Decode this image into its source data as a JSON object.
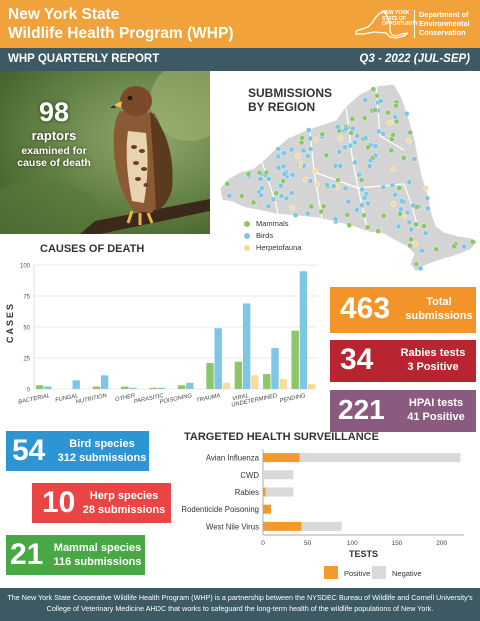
{
  "header": {
    "title_line1": "New York State",
    "title_line2": "Wildlife Health Program (WHP)",
    "logo_state_text": "NEW YORK STATE OF OPPORTUNITY",
    "logo_dec_line1": "Department of",
    "logo_dec_line2": "Environmental",
    "logo_dec_line3": "Conservation"
  },
  "subheader": {
    "left": "WHP QUARTERLY REPORT",
    "right": "Q3 - 2022 (JUL-SEP)"
  },
  "photo_stat": {
    "number": "98",
    "label": "raptors",
    "sublabel": "examined for cause of death"
  },
  "map": {
    "title_line1": "SUBMISSIONS",
    "title_line2": "BY REGION",
    "legend": [
      {
        "label": "Mammals",
        "color": "#8cc56a"
      },
      {
        "label": "Birds",
        "color": "#7ec6e4"
      },
      {
        "label": "Herpetofauna",
        "color": "#f5dc9a"
      }
    ]
  },
  "causes_title": "CAUSES OF DEATH",
  "chart_data": [
    {
      "type": "bar",
      "title": "CAUSES OF DEATH",
      "ylabel": "CASES",
      "xlabel": "",
      "ylim": [
        0,
        100
      ],
      "yticks": [
        0,
        25,
        50,
        75,
        100
      ],
      "grid": true,
      "categories": [
        "BACTERIAL",
        "FUNGAL",
        "NUTRITION",
        "OTHER",
        "PARASITIC",
        "POISONING",
        "TRAUMA",
        "VIRAL",
        "UNDETERMINED",
        "PENDING"
      ],
      "series": [
        {
          "name": "Mammals",
          "color": "#8cc56a",
          "values": [
            3,
            0,
            2,
            2,
            1,
            3,
            21,
            22,
            12,
            47
          ]
        },
        {
          "name": "Birds",
          "color": "#7ec6e4",
          "values": [
            2,
            7,
            11,
            1,
            1,
            5,
            49,
            69,
            33,
            95
          ]
        },
        {
          "name": "Herpetofauna",
          "color": "#f5dc9a",
          "values": [
            0,
            0,
            0,
            0,
            0,
            0,
            5,
            11,
            8,
            4
          ]
        }
      ]
    },
    {
      "type": "bar",
      "orientation": "horizontal",
      "stacked": true,
      "title": "TARGETED HEALTH SURVEILLANCE",
      "xlabel": "TESTS",
      "xlim": [
        0,
        225
      ],
      "xticks": [
        0,
        50,
        100,
        150,
        200
      ],
      "grid": false,
      "categories": [
        "Avian Influenza",
        "CWD",
        "Rabies",
        "Rodenticide Poisoning",
        "West Nile Virus"
      ],
      "series": [
        {
          "name": "Positive",
          "color": "#f29a2e",
          "values": [
            41,
            0,
            3,
            9,
            43
          ]
        },
        {
          "name": "Negative",
          "color": "#d9d9d9",
          "values": [
            180,
            34,
            31,
            0,
            45
          ]
        }
      ]
    }
  ],
  "stats": {
    "total": {
      "number": "463",
      "label_line1": "Total",
      "label_line2": "submissions"
    },
    "rabies": {
      "number": "34",
      "label_line1": "Rabies tests",
      "label_line2": "3 Positive"
    },
    "hpai": {
      "number": "221",
      "label_line1": "HPAI tests",
      "label_line2": "41 Positive"
    },
    "bird": {
      "number": "54",
      "label_line1": "Bird species",
      "label_line2": "312 submissions"
    },
    "herp": {
      "number": "10",
      "label_line1": "Herp species",
      "label_line2": "28 submissions"
    },
    "mammal": {
      "number": "21",
      "label_line1": "Mammal species",
      "label_line2": "116 submissions"
    }
  },
  "surveillance_title": "TARGETED HEALTH SURVEILLANCE",
  "surveillance_legend": {
    "positive": "Positive",
    "negative": "Negative"
  },
  "footer": {
    "line1": "The New York State Cooperative Wildlife Health Program (WHP) is a partnership between the NYSDEC Bureau of Wildlife and Cornell University's",
    "line2": "College of Veterinary Medicine AHDC that works to safeguard the long-term health of the wildlife populations of New York."
  }
}
